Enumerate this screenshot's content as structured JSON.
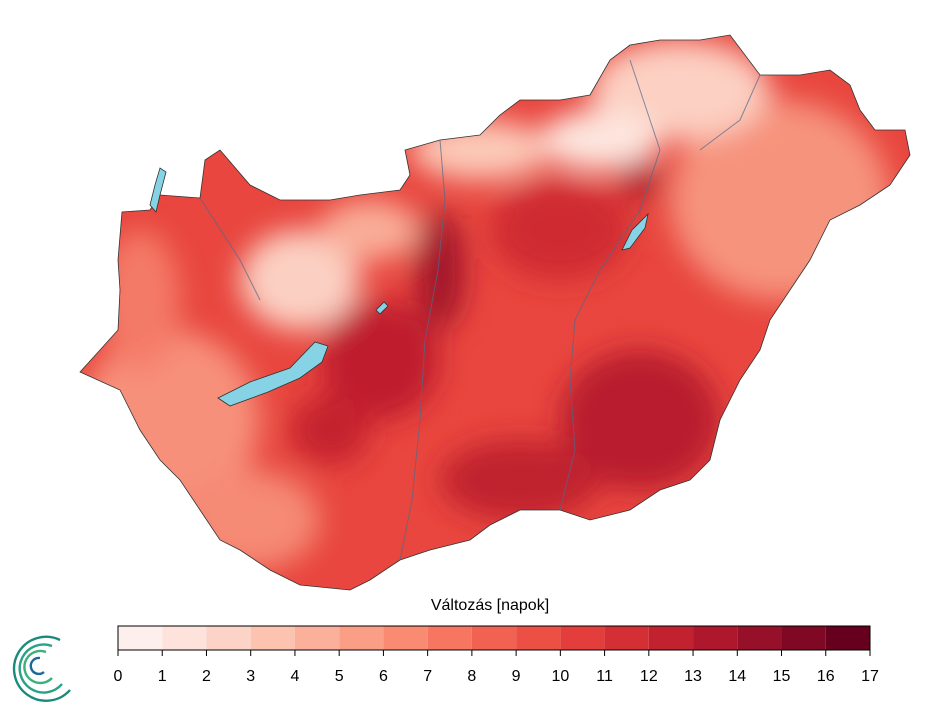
{
  "legend": {
    "title": "Változás [napok]",
    "ticks": [
      0,
      1,
      2,
      3,
      4,
      5,
      6,
      7,
      8,
      9,
      10,
      11,
      12,
      13,
      14,
      15,
      16,
      17
    ],
    "colors": [
      "#fdf0ec",
      "#fde3db",
      "#fcd4c7",
      "#fcc3b1",
      "#fbb09b",
      "#fb9e86",
      "#f98b73",
      "#f67662",
      "#f26253",
      "#ec4f44",
      "#e33e3b",
      "#d42f35",
      "#c22230",
      "#ae172c",
      "#971029",
      "#7f0924",
      "#67001f"
    ]
  }
}
